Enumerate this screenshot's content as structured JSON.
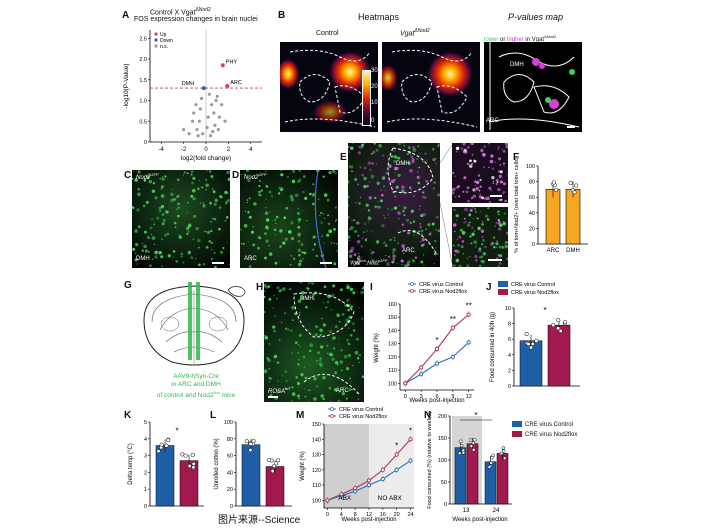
{
  "figure": {
    "source_caption": "图片来源--Science",
    "panels": {
      "A": {
        "label": "A",
        "title_prefix": "Control X Vgat",
        "title_sup": "ΔNod2",
        "subtitle": "FOS expression changes in brain nuclei",
        "legend": [
          "Up",
          "Down",
          "n.s."
        ],
        "xlabel": "log2(fold change)",
        "ylabel": "-log10(P-Value)",
        "x_ticks": [
          "-4",
          "-2",
          "0",
          "2",
          "4"
        ],
        "y_ticks": [
          "0",
          "0.5",
          "1.0",
          "1.5",
          "2.0",
          "2.5"
        ],
        "annotations": [
          "PHY",
          "DMH",
          "ARC"
        ]
      },
      "B": {
        "label": "B",
        "title_heatmaps": "Heatmaps",
        "title_pvalues": "P-values map",
        "col_control": "Control",
        "col_vgat": "Vgat",
        "col_vgat_sup": "ΔNod2",
        "colorbar_ticks": [
          "30",
          "20",
          "10",
          "0"
        ],
        "pmap_lower": "lower",
        "pmap_or": "or",
        "pmap_higher": "higher",
        "pmap_in": "in Vgat",
        "pmap_sup": "ΔNod2",
        "pmap_regions": [
          "DMH",
          "ARC"
        ]
      },
      "C": {
        "label": "C",
        "title": "Nod2",
        "sup": "GFP",
        "region": "DMH"
      },
      "D": {
        "label": "D",
        "title": "Nod2",
        "sup": "GFP",
        "region": "ARC"
      },
      "E": {
        "label": "E",
        "regions": [
          "DMH",
          "ARC"
        ],
        "footer": "Vgat",
        "footer_sup": "cre",
        "footer2": ";Nod2",
        "footer2_sup": "GFP"
      },
      "F": {
        "label": "F",
        "ylabel": "% of tom+Nod2+ (over total tom+ cells)",
        "categories": [
          "ARC",
          "DMH"
        ],
        "y_ticks": [
          "0",
          "20",
          "40",
          "60",
          "80",
          "100"
        ]
      },
      "G": {
        "label": "G",
        "line1": "AAV9-hSyn-Cre",
        "line2": "in ARC and DMH",
        "line3": "of control and Nod2",
        "line3_sup": "flox",
        "line3_end": "mice"
      },
      "H": {
        "label": "H",
        "regions": [
          "DMH",
          "ARC"
        ],
        "footer": "ROSA",
        "footer_sup": "tdT"
      },
      "I": {
        "label": "I",
        "legend": [
          "CRE virus Control",
          "CRE virus Nod2flox"
        ],
        "xlabel": "Weeks post-injection",
        "ylabel": "Weight (%)",
        "stars": [
          "*",
          "**",
          "**"
        ]
      },
      "J": {
        "label": "J",
        "legend": [
          "CRE virus Control",
          "CRE virus Nod2flox"
        ],
        "ylabel": "Food consumed in 40h (g)",
        "star": "*",
        "y_ticks": [
          "0",
          "2",
          "4",
          "6",
          "8",
          "10"
        ]
      },
      "K": {
        "label": "K",
        "ylabel": "Delta temp (°C)",
        "star": "*",
        "y_ticks": [
          "0",
          "1",
          "2",
          "3",
          "4",
          "5"
        ]
      },
      "L": {
        "label": "L",
        "ylabel": "Unrolled cotton (%)",
        "y_ticks": [
          "0",
          "20",
          "40",
          "60",
          "80",
          "100"
        ]
      },
      "M": {
        "label": "M",
        "legend": [
          "CRE virus Control",
          "CRE virus Nod2flox"
        ],
        "xlabel": "Weeks post-injection",
        "ylabel": "Weight (%)",
        "zone1": "ABX",
        "zone2": "NO ABX",
        "stars": [
          "*",
          "*"
        ]
      },
      "N": {
        "label": "N",
        "legend": [
          "CRE virus Control",
          "CRE virus Nod2flox"
        ],
        "xlabel": "Weeks post-injection",
        "ylabel": "Food consumed (%) (relative to week 9)",
        "star": "*",
        "y_ticks": [
          "0",
          "50",
          "100",
          "150",
          "200"
        ]
      }
    },
    "colors": {
      "control": "#2e6fb5",
      "nod2flox": "#b03364",
      "orange_bar": "#f5a623",
      "control_bar": "#1f5fa8",
      "nod2_bar": "#a2194f",
      "green": "#3ad15a",
      "magenta": "#d640d6",
      "threshold": "#d33"
    }
  },
  "chart_data": [
    {
      "panel": "A",
      "type": "scatter",
      "title": "FOS expression changes in brain nuclei",
      "xlabel": "log2(fold change)",
      "ylabel": "-log10(P-Value)",
      "xlim": [
        -5,
        5
      ],
      "ylim": [
        0,
        2.7
      ],
      "threshold_y": 1.3,
      "series": [
        {
          "name": "Up",
          "points": [
            [
              1.5,
              1.85
            ],
            [
              1.9,
              1.35
            ]
          ]
        },
        {
          "name": "Down",
          "points": [
            [
              -0.2,
              1.3
            ]
          ]
        },
        {
          "name": "n.s.",
          "points": [
            [
              -1.2,
              0.5
            ],
            [
              -0.8,
              0.3
            ],
            [
              -0.5,
              0.8
            ],
            [
              0.2,
              0.6
            ],
            [
              0.5,
              0.9
            ],
            [
              0.8,
              0.4
            ],
            [
              1.0,
              1.1
            ],
            [
              -1.5,
              0.2
            ],
            [
              -0.3,
              0.2
            ],
            [
              0.4,
              0.15
            ],
            [
              0.7,
              0.7
            ],
            [
              1.2,
              0.6
            ],
            [
              -0.9,
              0.9
            ],
            [
              -0.6,
              0.5
            ],
            [
              0.1,
              0.35
            ],
            [
              1.4,
              0.9
            ],
            [
              -1.1,
              0.7
            ],
            [
              0.9,
              1.0
            ],
            [
              -0.4,
              1.05
            ],
            [
              0.3,
              1.15
            ],
            [
              -2.0,
              0.3
            ],
            [
              1.7,
              0.5
            ],
            [
              0.6,
              0.25
            ],
            [
              -0.7,
              0.15
            ],
            [
              1.1,
              0.3
            ]
          ]
        }
      ]
    },
    {
      "panel": "F",
      "type": "bar",
      "categories": [
        "ARC",
        "DMH"
      ],
      "values": [
        70,
        70
      ],
      "ylim": [
        0,
        100
      ],
      "ylabel": "% of tom+Nod2+ (over total tom+ cells)"
    },
    {
      "panel": "I",
      "type": "line",
      "x": [
        0,
        3,
        6,
        9,
        12
      ],
      "series": [
        {
          "name": "CRE virus Control",
          "values": [
            100,
            107,
            115,
            120,
            131
          ]
        },
        {
          "name": "CRE virus Nod2flox",
          "values": [
            100,
            112,
            126,
            142,
            152
          ]
        }
      ],
      "x_ticks": [
        "0",
        "3",
        "6",
        "9",
        "12"
      ],
      "y_ticks": [
        "100",
        "110",
        "120",
        "130",
        "140",
        "150",
        "160"
      ],
      "ylim": [
        95,
        160
      ],
      "xlabel": "Weeks post-injection",
      "ylabel": "Weight (%)"
    },
    {
      "panel": "J",
      "type": "bar",
      "categories": [
        "CRE virus Control",
        "CRE virus Nod2flox"
      ],
      "values": [
        5.8,
        7.8
      ],
      "ylim": [
        0,
        10
      ],
      "ylabel": "Food consumed in 40h (g)"
    },
    {
      "panel": "K",
      "type": "bar",
      "categories": [
        "CRE virus Control",
        "CRE virus Nod2flox"
      ],
      "values": [
        3.6,
        2.7
      ],
      "ylim": [
        0,
        5
      ],
      "ylabel": "Delta temp (°C)"
    },
    {
      "panel": "L",
      "type": "bar",
      "categories": [
        "CRE virus Control",
        "CRE virus Nod2flox"
      ],
      "values": [
        73,
        47
      ],
      "ylim": [
        0,
        100
      ],
      "ylabel": "Unrolled cotton (%)"
    },
    {
      "panel": "M",
      "type": "line",
      "x": [
        0,
        4,
        8,
        12,
        16,
        20,
        24
      ],
      "series": [
        {
          "name": "CRE virus Control",
          "values": [
            100,
            103,
            106,
            110,
            114,
            120,
            126
          ]
        },
        {
          "name": "CRE virus Nod2flox",
          "values": [
            100,
            104,
            108,
            113,
            120,
            130,
            140
          ]
        }
      ],
      "x_ticks": [
        "0",
        "4",
        "8",
        "12",
        "16",
        "20",
        "24"
      ],
      "y_ticks": [
        "100",
        "110",
        "120",
        "130",
        "140",
        "150"
      ],
      "ylim": [
        95,
        150
      ],
      "xlabel": "Weeks post-injection",
      "ylabel": "Weight (%)"
    },
    {
      "panel": "N",
      "type": "bar",
      "categories": [
        "13",
        "24"
      ],
      "series": [
        {
          "name": "CRE virus Control",
          "values": [
            128,
            96
          ]
        },
        {
          "name": "CRE virus Nod2flox",
          "values": [
            137,
            115
          ]
        }
      ],
      "ylim": [
        0,
        200
      ],
      "xlabel": "Weeks post-injection",
      "ylabel": "Food consumed (%) (relative to week 9)"
    }
  ]
}
